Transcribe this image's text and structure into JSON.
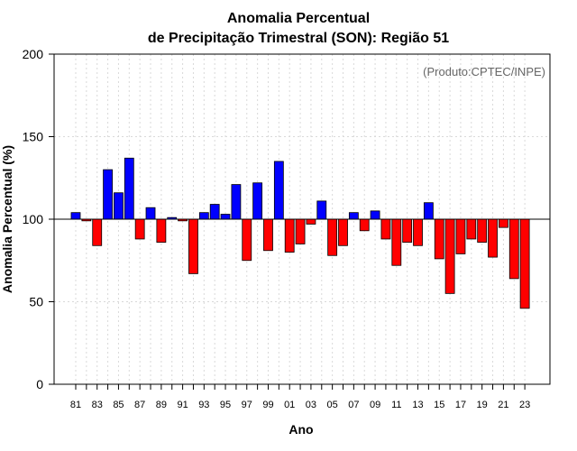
{
  "chart_data": {
    "type": "bar",
    "title_line1": "Anomalia Percentual",
    "title_line2": "de Precipitação Trimestral (SON): Região 51",
    "xlabel": "Ano",
    "ylabel": "Anomalia Percentual (%)",
    "credit": "(Produto:CPTEC/INPE)",
    "baseline": 100,
    "ylim": [
      0,
      200
    ],
    "yticks": [
      0,
      50,
      100,
      150,
      200
    ],
    "xtick_labels": [
      "81",
      "83",
      "85",
      "87",
      "89",
      "91",
      "93",
      "95",
      "97",
      "99",
      "01",
      "03",
      "05",
      "07",
      "09",
      "11",
      "13",
      "15",
      "17",
      "19",
      "21",
      "23"
    ],
    "years": [
      1981,
      1982,
      1983,
      1984,
      1985,
      1986,
      1987,
      1988,
      1989,
      1990,
      1991,
      1992,
      1993,
      1994,
      1995,
      1996,
      1997,
      1998,
      1999,
      2000,
      2001,
      2002,
      2003,
      2004,
      2005,
      2006,
      2007,
      2008,
      2009,
      2010,
      2011,
      2012,
      2013,
      2014,
      2015,
      2016,
      2017,
      2018,
      2019,
      2020,
      2021,
      2022,
      2023
    ],
    "values": [
      104,
      99,
      84,
      130,
      116,
      137,
      88,
      107,
      86,
      101,
      99,
      67,
      104,
      109,
      103,
      121,
      75,
      122,
      81,
      135,
      80,
      85,
      97,
      111,
      78,
      84,
      104,
      93,
      105,
      88,
      72,
      86,
      84,
      110,
      76,
      55,
      79,
      88,
      86,
      77,
      95,
      64,
      46
    ],
    "colors": {
      "above": "#0000ff",
      "below": "#ff0000",
      "grid": "#d9d9d9",
      "axis": "#000000",
      "credit": "#666666"
    }
  }
}
